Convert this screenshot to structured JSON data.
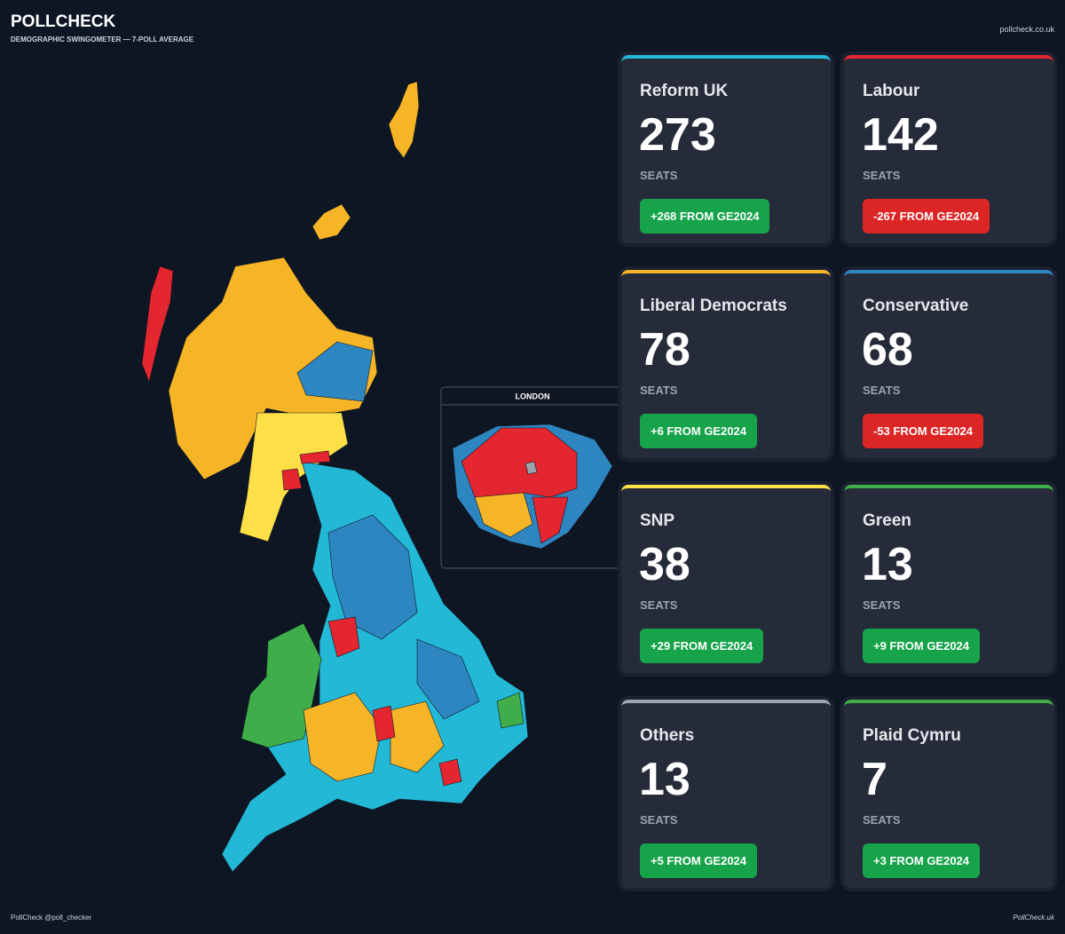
{
  "header": {
    "brand": "POLLCHECK",
    "subtitle": "DEMOGRAPHIC SWINGOMETER — 7-POLL AVERAGE",
    "site": "pollcheck.co.uk"
  },
  "inset": {
    "label": "LONDON"
  },
  "seats_label": "SEATS",
  "parties": [
    {
      "name": "Reform UK",
      "seats": "273",
      "change": "+268 FROM GE2024",
      "color": "#22b8d6",
      "badge_color": "#16a34a"
    },
    {
      "name": "Labour",
      "seats": "142",
      "change": "-267 FROM GE2024",
      "color": "#e3262f",
      "badge_color": "#dc2626"
    },
    {
      "name": "Liberal Democrats",
      "seats": "78",
      "change": "+6 FROM GE2024",
      "color": "#f6b526",
      "badge_color": "#16a34a"
    },
    {
      "name": "Conservative",
      "seats": "68",
      "change": "-53 FROM GE2024",
      "color": "#2e86c1",
      "badge_color": "#dc2626"
    },
    {
      "name": "SNP",
      "seats": "38",
      "change": "+29 FROM GE2024",
      "color": "#fde047",
      "badge_color": "#16a34a"
    },
    {
      "name": "Green",
      "seats": "13",
      "change": "+9 FROM GE2024",
      "color": "#3fae4a",
      "badge_color": "#16a34a"
    },
    {
      "name": "Others",
      "seats": "13",
      "change": "+5 FROM GE2024",
      "color": "#9ca3af",
      "badge_color": "#16a34a"
    },
    {
      "name": "Plaid Cymru",
      "seats": "7",
      "change": "+3 FROM GE2024",
      "color": "#3fae4a",
      "badge_color": "#16a34a"
    }
  ],
  "footer": {
    "left": "PollCheck @poll_checker",
    "right": "PollCheck.uk"
  }
}
